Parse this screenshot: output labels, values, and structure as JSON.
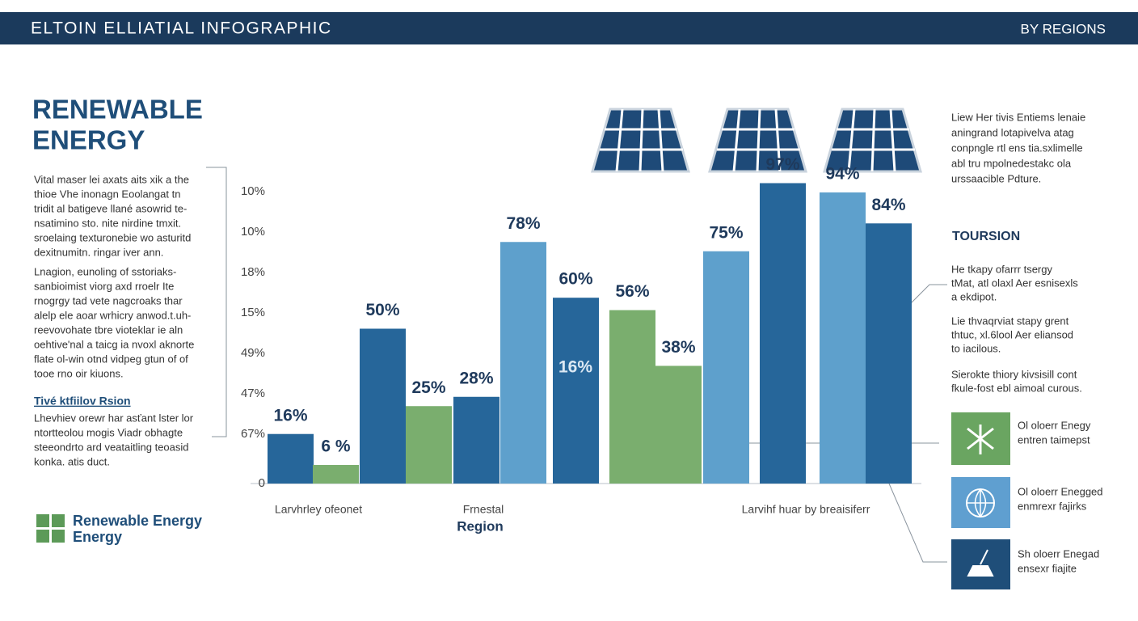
{
  "header": {
    "title": "ELTOIN ELLIATIAL INFOGRAPHIC",
    "subtitle": "BY REGIONS"
  },
  "left": {
    "title_lines": [
      "RENEWABLE",
      "ENERGY"
    ],
    "paragraph1": [
      "Vital  maser lei axats aits xik a the",
      "thioe  Vhe  inonagn  Eoolangat  tn",
      "tridit al batigeve llané asowrid te-",
      "nsatimino sto. nite nirdine  tmxit.",
      "sroelaing texturonebie wo asturitd",
      "dexitnumitn. ringar iver ann."
    ],
    "paragraph2": [
      "Lnagion,  eunoling  of  sstoriaks-",
      "sanbioimist  viorg  axd  rroelr  Ite",
      "rnogrgy tad vete nagcroaks thar",
      "alelp ele aoar wrhicry anwod.t.uh-",
      "reevovohate tbre vioteklar ie aln",
      "oehtive'nal a taicg ia nvoxl aknorte",
      "flate ol-win otnd vidpeg  gtun  of  of",
      "tooe rno oir kiuons."
    ],
    "link": "Tivé ktfiilov Rsion",
    "paragraph3": [
      "Lhevhiev orewr har asťant lster lor",
      "ntortteolou mogis  Viadr  obhagte",
      "steeondrto ard veataitling teoasid",
      "konka. atis duct."
    ],
    "logo_lines": [
      "Renewable Energy",
      "Energy"
    ]
  },
  "right": {
    "intro": [
      "Liew Her tivis Entiems lenaie",
      "aningrand lotapivelva atag",
      "conpngle rtl ens tia.sxlimelle",
      "abl tru mpolnedestakc ola",
      "urssaacible Pdture."
    ],
    "heading": "TOURSION",
    "notes": [
      [
        "He tkapy ofarrr tsergy",
        "tMat,  atl olaxl  Aer esnisexls",
        "a ekdipot."
      ],
      [
        "Lie thvaqrviat stapy grent",
        "thtuc,  xl.6lool  Aer eliansod",
        "to iacilous."
      ],
      [
        "Sierokte thiory kivsisill cont",
        "fkule-fost ebl aimoal curous."
      ]
    ],
    "items": [
      [
        "Ol oloerr Enegy",
        "entren taimepst"
      ],
      [
        "Ol oloerr Enegged",
        "enmrexr fajirks"
      ],
      [
        "Sh oloerr Enegad",
        "ensexr fiajite"
      ]
    ]
  },
  "chart_data": {
    "type": "bar",
    "x_label": "Region",
    "x_group_labels": [
      "Larvhrley ofeonet",
      "Frnestal",
      "Larvihf huar by breaisiferr"
    ],
    "y_axis_labels": [
      "10%",
      "10%",
      "18%",
      "15%",
      "49%",
      "47%",
      "67%",
      "0"
    ],
    "categories": [
      null,
      null,
      null,
      null,
      null,
      null,
      null,
      null,
      null,
      null,
      null,
      null,
      null
    ],
    "values": [
      16,
      6,
      50,
      25,
      28,
      78,
      60,
      56,
      38,
      75,
      97,
      94,
      84
    ],
    "value_labels": [
      "16%",
      "6 %",
      "50%",
      "25%",
      "28%",
      "78%",
      "60%",
      "56%",
      "38%",
      "75%",
      "97%",
      "94%",
      "84%"
    ],
    "colors": [
      "#26669a",
      "#7aae6e",
      "#26669a",
      "#7aae6e",
      "#26669a",
      "#5ea0cc",
      "#26669a",
      "#7aae6e",
      "#7aae6e",
      "#5ea0cc",
      "#26669a",
      "#5ea0cc",
      "#26669a"
    ],
    "annotations": [
      "16%"
    ],
    "ylim": [
      0,
      100
    ]
  }
}
